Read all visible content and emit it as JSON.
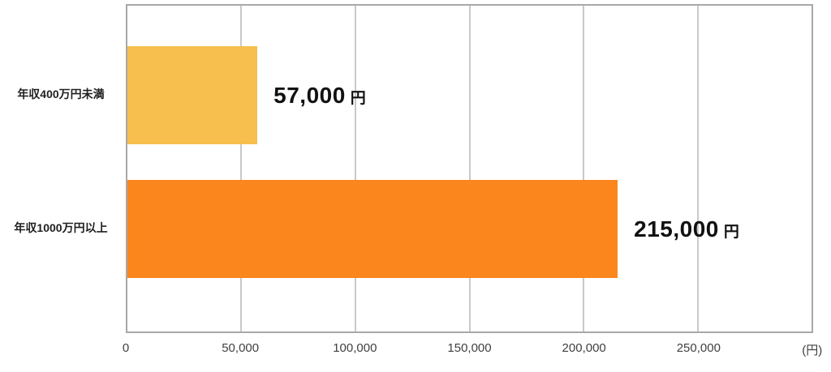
{
  "chart_data": {
    "type": "bar",
    "orientation": "horizontal",
    "title": "",
    "categories": [
      "年収400万円未満",
      "年収1000万円以上"
    ],
    "values": [
      57000,
      215000
    ],
    "value_labels": [
      "57,000",
      "215,000"
    ],
    "value_unit": "円",
    "series_colors": [
      "#F7BF4D",
      "#FA861D"
    ],
    "xlim": [
      0,
      300000
    ],
    "x_tick_interval": 50000,
    "x_tick_labels": [
      "0",
      "50,000",
      "100,000",
      "150,000",
      "200,000",
      "250,000"
    ],
    "x_axis_unit_label": "(円)",
    "grid": "vertical-only",
    "legend": "none",
    "colors": {
      "plot_border": "#A8A8A8",
      "gridline": "#C9C9C9",
      "tick_label": "#404040",
      "category_label": "#1F1F1F",
      "value_label": "#111111",
      "background": "#FFFFFF"
    }
  }
}
